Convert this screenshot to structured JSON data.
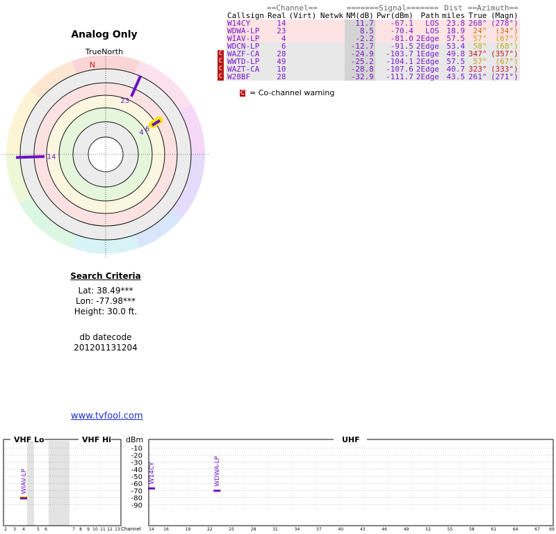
{
  "header": {
    "title": "Analog Only",
    "true_north": "TrueNorth",
    "north_marker": "N"
  },
  "table": {
    "group_headers": {
      "channel": "==Channel==",
      "signal": "=======Signal=======",
      "dist": "Dist",
      "azimuth": "==Azimuth=="
    },
    "columns": [
      "Callsign",
      "Real",
      "(Virt)",
      "Netwk",
      "NM(dB)",
      "Pwr(dBm)",
      "Path",
      "miles",
      "True",
      "(Magn)"
    ],
    "rows": [
      {
        "callsign": "W14CY",
        "real": "14",
        "virt": "",
        "netwk": "",
        "nm": "11.7",
        "pwr": "-67.1",
        "path": "LOS",
        "dist": "23.8",
        "az_true": "268°",
        "az_magn": "(278°)",
        "az_color": "#7a17c8",
        "bg": "pink",
        "cochannel": false,
        "cc": ""
      },
      {
        "callsign": "WDWA-LP",
        "real": "23",
        "virt": "",
        "netwk": "",
        "nm": "8.5",
        "pwr": "-70.4",
        "path": "LOS",
        "dist": "18.9",
        "az_true": "24°",
        "az_magn": "(34°)",
        "az_color": "#d06a1a",
        "bg": "pink",
        "cochannel": false,
        "cc": ""
      },
      {
        "callsign": "WIAV-LP",
        "real": "4",
        "virt": "",
        "netwk": "",
        "nm": "-2.2",
        "pwr": "-81.0",
        "path": "2Edge",
        "dist": "57.5",
        "az_true": "57°",
        "az_magn": "(67°)",
        "az_color": "#c9a21a",
        "bg": "pink",
        "cochannel": false,
        "cc": ""
      },
      {
        "callsign": "WDCN-LP",
        "real": "6",
        "virt": "",
        "netwk": "",
        "nm": "-12.7",
        "pwr": "-91.5",
        "path": "2Edge",
        "dist": "53.4",
        "az_true": "58°",
        "az_magn": "(68°)",
        "az_color": "#b9ac1a",
        "bg": "grey",
        "cochannel": false,
        "cc": ""
      },
      {
        "callsign": "WAZF-CA",
        "real": "28",
        "virt": "",
        "netwk": "",
        "nm": "-24.9",
        "pwr": "-103.7",
        "path": "1Edge",
        "dist": "49.8",
        "az_true": "347°",
        "az_magn": "(357°)",
        "az_color": "#c01818",
        "bg": "grey",
        "cochannel": true,
        "cc": "C"
      },
      {
        "callsign": "WWTD-LP",
        "real": "49",
        "virt": "",
        "netwk": "",
        "nm": "-25.2",
        "pwr": "-104.1",
        "path": "2Edge",
        "dist": "57.5",
        "az_true": "57°",
        "az_magn": "(67°)",
        "az_color": "#c9a21a",
        "bg": "grey",
        "cochannel": true,
        "cc": "C"
      },
      {
        "callsign": "WAZT-CA",
        "real": "10",
        "virt": "",
        "netwk": "",
        "nm": "-28.8",
        "pwr": "-107.6",
        "path": "2Edge",
        "dist": "40.7",
        "az_true": "323°",
        "az_magn": "(333°)",
        "az_color": "#c0182a",
        "bg": "grey",
        "cochannel": true,
        "cc": "C"
      },
      {
        "callsign": "W28BF",
        "real": "28",
        "virt": "",
        "netwk": "",
        "nm": "-32.9",
        "pwr": "-111.7",
        "path": "2Edge",
        "dist": "43.5",
        "az_true": "261°",
        "az_magn": "(271°)",
        "az_color": "#7a17c8",
        "bg": "grey",
        "cochannel": true,
        "cc": "C"
      }
    ]
  },
  "legend": {
    "icon": "C",
    "text": "= Co-channel warning"
  },
  "polar": {
    "stations": [
      {
        "label": "23",
        "azimuth": 24,
        "color": "#6a10c0"
      },
      {
        "label": "4",
        "azimuth": 57,
        "color": "#6a10c0"
      },
      {
        "label": "6",
        "azimuth": 58,
        "color": "#6a10c0"
      },
      {
        "label": "14",
        "azimuth": 268,
        "color": "#6a10c0"
      }
    ]
  },
  "criteria": {
    "heading": "Search Criteria",
    "lat": "Lat: 38.49***",
    "lon": "Lon: -77.98***",
    "height": "Height: 30.0 ft."
  },
  "db": {
    "label": "db datecode",
    "value": "201201131204"
  },
  "link": {
    "text": "www.tvfool.com"
  },
  "spectrum": {
    "vhf_lo_label": "VHF Lo",
    "vhf_hi_label": "VHF Hi",
    "uhf_label": "UHF",
    "dbm_label": "dBm",
    "y_ticks": [
      "-10",
      "-20",
      "-30",
      "-40",
      "-50",
      "-60",
      "-70",
      "-80",
      "-90"
    ],
    "channel_label": "Channel",
    "vhf_channels": [
      "2",
      "3",
      "4",
      "5",
      "6",
      "7",
      "8",
      "9",
      "10",
      "11",
      "12",
      "13"
    ],
    "uhf_channels": [
      "14",
      "16",
      "19",
      "22",
      "25",
      "28",
      "31",
      "34",
      "37",
      "40",
      "43",
      "46",
      "49",
      "52",
      "55",
      "58",
      "61",
      "64",
      "67",
      "69"
    ],
    "bars": [
      {
        "label": "WIAV-LP",
        "channel": 4,
        "dbm": -81.0,
        "band": "vhf"
      },
      {
        "label": "W14CY",
        "channel": 14,
        "dbm": -67.1,
        "band": "uhf"
      },
      {
        "label": "WDWA-LP",
        "channel": 23,
        "dbm": -70.4,
        "band": "uhf"
      }
    ]
  }
}
